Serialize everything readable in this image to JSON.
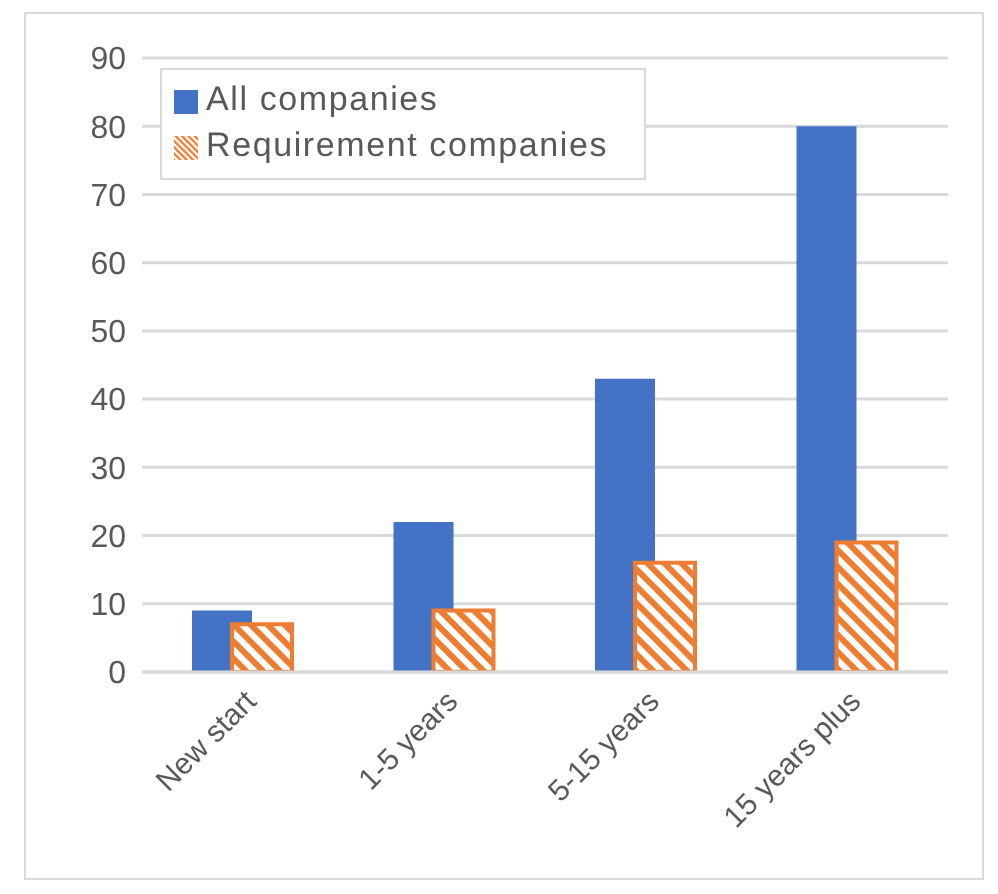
{
  "chart_data": {
    "type": "bar",
    "categories": [
      "New start",
      "1-5 years",
      "5-15 years",
      "15 years plus"
    ],
    "series": [
      {
        "name": "All companies",
        "color": "#4472c4",
        "values": [
          9,
          22,
          43,
          80
        ]
      },
      {
        "name": "Requirement companies",
        "color": "#ed7d31",
        "values": [
          7,
          9,
          16,
          19
        ]
      }
    ],
    "ylim": [
      0,
      90
    ],
    "yticks": [
      0,
      10,
      20,
      30,
      40,
      50,
      60,
      70,
      80,
      90
    ],
    "grid": "y",
    "legend": "top left"
  }
}
